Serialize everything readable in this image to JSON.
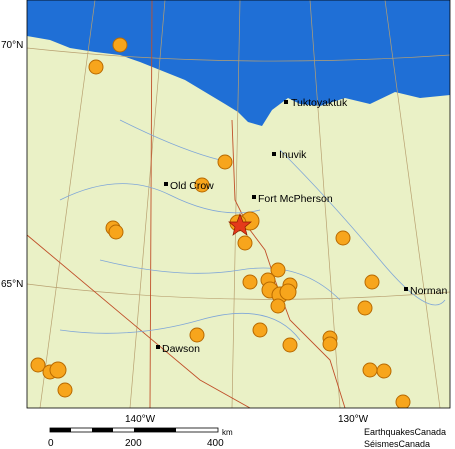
{
  "map": {
    "lat_labels": [
      "70°N",
      "65°N"
    ],
    "lon_labels": [
      "140°W",
      "130°W"
    ],
    "places": [
      "Tuktoyaktuk",
      "Inuvik",
      "Old Crow",
      "Fort McPherson",
      "Norman",
      "Dawson"
    ],
    "scale": {
      "ticks": [
        "0",
        "200",
        "400"
      ],
      "unit": "km"
    },
    "credits": [
      "EarthquakesCanada",
      "SéismesCanada"
    ]
  }
}
